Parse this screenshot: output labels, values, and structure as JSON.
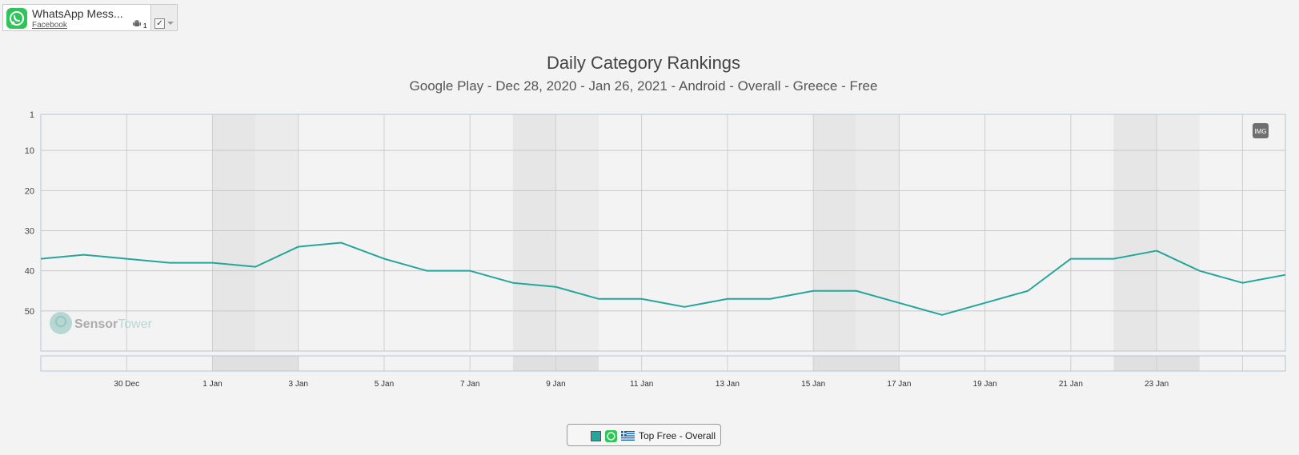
{
  "app": {
    "name": "WhatsApp Mess...",
    "publisher": "Facebook",
    "device_count": "1"
  },
  "chart_data": {
    "type": "line",
    "title": "Daily Category Rankings",
    "subtitle": "Google Play - Dec 28, 2020 - Jan 26, 2021 - Android - Overall - Greece - Free",
    "xlabel": "",
    "ylabel": "",
    "y_reversed": true,
    "ylim": [
      1,
      60
    ],
    "yticks": [
      "1",
      "10",
      "20",
      "30",
      "40",
      "50"
    ],
    "x_tick_labels": [
      "30 Dec",
      "1 Jan",
      "3 Jan",
      "5 Jan",
      "7 Jan",
      "9 Jan",
      "11 Jan",
      "13 Jan",
      "15 Jan",
      "17 Jan",
      "19 Jan",
      "21 Jan",
      "23 Jan"
    ],
    "x": [
      "Dec 28",
      "Dec 29",
      "Dec 30",
      "Dec 31",
      "Jan 1",
      "Jan 2",
      "Jan 3",
      "Jan 4",
      "Jan 5",
      "Jan 6",
      "Jan 7",
      "Jan 8",
      "Jan 9",
      "Jan 10",
      "Jan 11",
      "Jan 12",
      "Jan 13",
      "Jan 14",
      "Jan 15",
      "Jan 16",
      "Jan 17",
      "Jan 18",
      "Jan 19",
      "Jan 20",
      "Jan 21",
      "Jan 22",
      "Jan 23",
      "Jan 24",
      "Jan 25",
      "Jan 26"
    ],
    "series": [
      {
        "name": "Top Free - Overall",
        "color": "#26a69a",
        "values": [
          37,
          36,
          37,
          38,
          38,
          39,
          34,
          33,
          37,
          40,
          40,
          43,
          44,
          47,
          47,
          49,
          47,
          47,
          45,
          45,
          48,
          51,
          48,
          45,
          37,
          37,
          35,
          40,
          43,
          41
        ]
      }
    ],
    "weekend_shading": true,
    "grid": true,
    "legend": "bottom-center"
  },
  "watermark": {
    "brand_part1": "Sensor",
    "brand_part2": "Tower"
  },
  "export_button": {
    "label": "IMG"
  },
  "legend": {
    "label": "Top Free - Overall"
  }
}
